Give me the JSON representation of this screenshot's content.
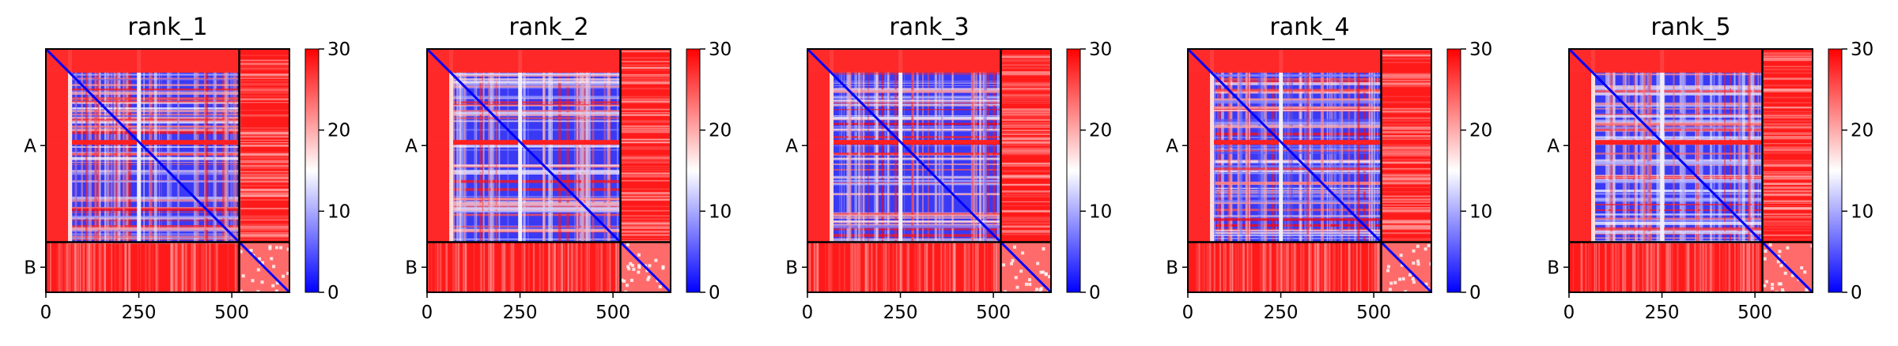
{
  "chart_data": [
    {
      "type": "heatmap",
      "title": "rank_1",
      "xlabel": "",
      "ylabel": "",
      "xticks": [
        0,
        250,
        500
      ],
      "yticks": [
        "A",
        "B"
      ],
      "chain_lengths": {
        "A": 520,
        "B": 135
      },
      "total_residues": 655,
      "colorbar": {
        "ticks": [
          0,
          10,
          20,
          30
        ],
        "vmin": 0,
        "vmax": 30,
        "cmap": "bwr"
      }
    },
    {
      "type": "heatmap",
      "title": "rank_2",
      "xlabel": "",
      "ylabel": "",
      "xticks": [
        0,
        250,
        500
      ],
      "yticks": [
        "A",
        "B"
      ],
      "chain_lengths": {
        "A": 520,
        "B": 135
      },
      "total_residues": 655,
      "colorbar": {
        "ticks": [
          0,
          10,
          20,
          30
        ],
        "vmin": 0,
        "vmax": 30,
        "cmap": "bwr"
      }
    },
    {
      "type": "heatmap",
      "title": "rank_3",
      "xlabel": "",
      "ylabel": "",
      "xticks": [
        0,
        250,
        500
      ],
      "yticks": [
        "A",
        "B"
      ],
      "chain_lengths": {
        "A": 520,
        "B": 135
      },
      "total_residues": 655,
      "colorbar": {
        "ticks": [
          0,
          10,
          20,
          30
        ],
        "vmin": 0,
        "vmax": 30,
        "cmap": "bwr"
      }
    },
    {
      "type": "heatmap",
      "title": "rank_4",
      "xlabel": "",
      "ylabel": "",
      "xticks": [
        0,
        250,
        500
      ],
      "yticks": [
        "A",
        "B"
      ],
      "chain_lengths": {
        "A": 520,
        "B": 135
      },
      "total_residues": 655,
      "colorbar": {
        "ticks": [
          0,
          10,
          20,
          30
        ],
        "vmin": 0,
        "vmax": 30,
        "cmap": "bwr"
      }
    },
    {
      "type": "heatmap",
      "title": "rank_5",
      "xlabel": "",
      "ylabel": "",
      "xticks": [
        0,
        250,
        500
      ],
      "yticks": [
        "A",
        "B"
      ],
      "chain_lengths": {
        "A": 520,
        "B": 135
      },
      "total_residues": 655,
      "colorbar": {
        "ticks": [
          0,
          10,
          20,
          30
        ],
        "vmin": 0,
        "vmax": 30,
        "cmap": "bwr"
      }
    }
  ],
  "colors": {
    "low": "#0000ff",
    "mid": "#ffffff",
    "high": "#ff0000",
    "frame": "#000000"
  }
}
